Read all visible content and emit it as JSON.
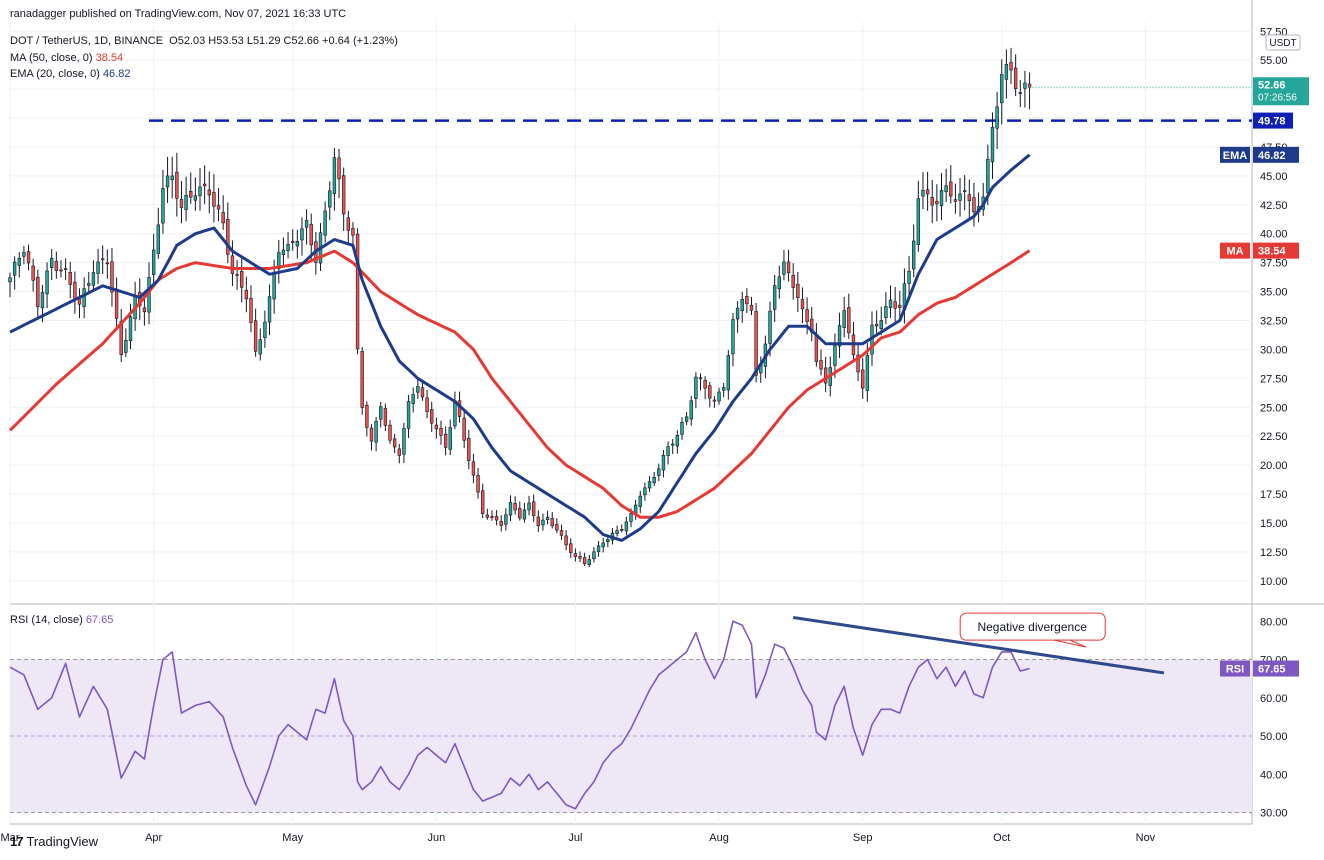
{
  "publish_line": "ranadagger published on TradingView.com, Nov 07, 2021 16:33 UTC",
  "legend": {
    "symbol": "DOT / TetherUS, 1D, BINANCE",
    "ohlc": "O52.03  H53.53  L51.29  C52.66  +0.64 (+1.23%)",
    "ma_label": "MA (50, close, 0)",
    "ma_value": "38.54",
    "ema_label": "EMA (20, close, 0)",
    "ema_value": "46.82",
    "rsi_label": "RSI (14, close)",
    "rsi_value": "67.65"
  },
  "footer": {
    "brand": "TradingView",
    "logo": "17"
  },
  "colors": {
    "up": "#26a69a",
    "down": "#ef5350",
    "candle": "#131722",
    "ema": "#1e3a8a",
    "ma": "#e53935",
    "rsi": "#7e57c2",
    "rsi_band": "#ede7f6",
    "resistance": "#0d1fb4",
    "divergence": "#2f4a8a",
    "annotation_border": "#e53935"
  },
  "chart_data": {
    "type": "candlestick",
    "price_axis": {
      "unit": "USDT",
      "ticks": [
        10.0,
        12.5,
        15.0,
        17.5,
        20.0,
        22.5,
        25.0,
        27.5,
        30.0,
        32.5,
        35.0,
        37.5,
        40.0,
        42.5,
        45.0,
        47.5,
        50.0,
        52.5,
        55.0,
        57.5
      ],
      "labels": [
        "10.00",
        "12.50",
        "15.00",
        "17.50",
        "20.00",
        "22.50",
        "25.00",
        "27.50",
        "30.00",
        "32.50",
        "35.00",
        "37.50",
        "40.00",
        "42.50",
        "45.00",
        "47.50",
        "",
        "",
        "55.00",
        "57.50"
      ],
      "range": [
        8.0,
        58.3
      ]
    },
    "rsi_axis": {
      "ticks": [
        30,
        40,
        50,
        60,
        70,
        80
      ],
      "labels": [
        "30.00",
        "40.00",
        "50.00",
        "60.00",
        "70.00",
        "80.00"
      ],
      "range": [
        27,
        84
      ],
      "band": [
        30,
        70
      ]
    },
    "time_axis": {
      "labels": [
        "Mar",
        "Apr",
        "May",
        "Jun",
        "Jul",
        "Aug",
        "Sep",
        "Oct",
        "Nov"
      ],
      "label_days": [
        0,
        31,
        61,
        92,
        122,
        153,
        184,
        214,
        245
      ],
      "last_day": 251,
      "right_pad_days": 17
    },
    "last_price": {
      "value": 52.66,
      "label": "52.66",
      "countdown": "07:26:56"
    },
    "resistance": {
      "value": 49.78,
      "label": "49.78",
      "start_day": 30
    },
    "ema_tag": {
      "label": "EMA",
      "value": "46.82"
    },
    "ma_tag": {
      "label": "MA",
      "value": "38.54"
    },
    "rsi_tag": {
      "label": "RSI",
      "value": "67.65"
    },
    "annotation": {
      "text": "Negative divergence",
      "day": 221,
      "rsi": 79
    },
    "divergence_line": {
      "start_day": 169,
      "start_rsi": 81,
      "end_day": 249,
      "end_rsi": 66.5
    },
    "close_anchors": [
      [
        0,
        36.2
      ],
      [
        3,
        38.5
      ],
      [
        6,
        34.0
      ],
      [
        9,
        38.0
      ],
      [
        12,
        36.5
      ],
      [
        15,
        33.5
      ],
      [
        18,
        37.0
      ],
      [
        21,
        38.2
      ],
      [
        24,
        29.5
      ],
      [
        27,
        34.0
      ],
      [
        29,
        33.5
      ],
      [
        31,
        38.5
      ],
      [
        33,
        44.5
      ],
      [
        35,
        45.0
      ],
      [
        37,
        42.0
      ],
      [
        40,
        43.5
      ],
      [
        43,
        44.0
      ],
      [
        46,
        41.0
      ],
      [
        48,
        36.5
      ],
      [
        51,
        34.5
      ],
      [
        53,
        29.5
      ],
      [
        56,
        34.5
      ],
      [
        58,
        39.0
      ],
      [
        60,
        38.5
      ],
      [
        62,
        39.5
      ],
      [
        64,
        40.5
      ],
      [
        66,
        38.0
      ],
      [
        68,
        42.0
      ],
      [
        70,
        47.0
      ],
      [
        72,
        41.5
      ],
      [
        74,
        39.5
      ],
      [
        75,
        29.5
      ],
      [
        76,
        25.0
      ],
      [
        78,
        22.0
      ],
      [
        80,
        25.5
      ],
      [
        82,
        22.0
      ],
      [
        84,
        21.0
      ],
      [
        86,
        25.0
      ],
      [
        88,
        27.0
      ],
      [
        90,
        24.5
      ],
      [
        92,
        23.5
      ],
      [
        94,
        21.5
      ],
      [
        96,
        25.5
      ],
      [
        98,
        22.0
      ],
      [
        100,
        19.0
      ],
      [
        102,
        16.0
      ],
      [
        104,
        15.5
      ],
      [
        106,
        15.0
      ],
      [
        108,
        16.5
      ],
      [
        110,
        15.5
      ],
      [
        112,
        16.5
      ],
      [
        114,
        15.0
      ],
      [
        116,
        15.5
      ],
      [
        118,
        14.5
      ],
      [
        120,
        13.0
      ],
      [
        122,
        12.0
      ],
      [
        124,
        11.5
      ],
      [
        126,
        12.5
      ],
      [
        128,
        13.5
      ],
      [
        130,
        14.0
      ],
      [
        132,
        14.5
      ],
      [
        134,
        15.5
      ],
      [
        136,
        17.5
      ],
      [
        138,
        18.5
      ],
      [
        140,
        20.0
      ],
      [
        142,
        21.5
      ],
      [
        144,
        22.5
      ],
      [
        146,
        24.0
      ],
      [
        148,
        27.5
      ],
      [
        150,
        27.0
      ],
      [
        152,
        25.5
      ],
      [
        154,
        27.0
      ],
      [
        156,
        32.0
      ],
      [
        158,
        34.5
      ],
      [
        160,
        33.0
      ],
      [
        161,
        28.0
      ],
      [
        163,
        30.5
      ],
      [
        165,
        36.0
      ],
      [
        167,
        37.0
      ],
      [
        169,
        35.5
      ],
      [
        171,
        33.0
      ],
      [
        173,
        32.0
      ],
      [
        174,
        29.0
      ],
      [
        176,
        27.5
      ],
      [
        178,
        30.0
      ],
      [
        180,
        33.5
      ],
      [
        182,
        29.0
      ],
      [
        184,
        27.0
      ],
      [
        186,
        32.0
      ],
      [
        188,
        33.0
      ],
      [
        190,
        34.0
      ],
      [
        192,
        33.5
      ],
      [
        194,
        36.5
      ],
      [
        196,
        43.0
      ],
      [
        198,
        44.0
      ],
      [
        200,
        42.5
      ],
      [
        202,
        44.5
      ],
      [
        204,
        42.0
      ],
      [
        206,
        44.0
      ],
      [
        208,
        41.5
      ],
      [
        210,
        44.0
      ],
      [
        212,
        49.0
      ],
      [
        214,
        54.0
      ],
      [
        216,
        53.5
      ],
      [
        218,
        52.0
      ],
      [
        220,
        52.66
      ]
    ],
    "ema_anchors": [
      [
        0,
        31.5
      ],
      [
        10,
        33.5
      ],
      [
        20,
        35.5
      ],
      [
        28,
        34.5
      ],
      [
        32,
        36.0
      ],
      [
        36,
        39.0
      ],
      [
        40,
        40.0
      ],
      [
        44,
        40.5
      ],
      [
        48,
        38.5
      ],
      [
        52,
        37.5
      ],
      [
        56,
        36.5
      ],
      [
        62,
        37.0
      ],
      [
        66,
        38.5
      ],
      [
        70,
        39.5
      ],
      [
        74,
        39.0
      ],
      [
        76,
        36.0
      ],
      [
        80,
        32.0
      ],
      [
        84,
        29.0
      ],
      [
        88,
        27.5
      ],
      [
        92,
        26.5
      ],
      [
        96,
        25.5
      ],
      [
        100,
        24.0
      ],
      [
        104,
        21.5
      ],
      [
        108,
        19.5
      ],
      [
        112,
        18.5
      ],
      [
        116,
        17.5
      ],
      [
        120,
        16.5
      ],
      [
        124,
        15.5
      ],
      [
        128,
        14.0
      ],
      [
        132,
        13.5
      ],
      [
        136,
        14.5
      ],
      [
        140,
        16.0
      ],
      [
        144,
        18.5
      ],
      [
        148,
        21.0
      ],
      [
        152,
        23.0
      ],
      [
        156,
        25.5
      ],
      [
        160,
        27.5
      ],
      [
        164,
        30.0
      ],
      [
        168,
        32.0
      ],
      [
        172,
        32.0
      ],
      [
        176,
        30.5
      ],
      [
        180,
        30.5
      ],
      [
        184,
        30.5
      ],
      [
        188,
        31.5
      ],
      [
        192,
        32.5
      ],
      [
        196,
        36.5
      ],
      [
        200,
        39.5
      ],
      [
        204,
        40.5
      ],
      [
        208,
        41.5
      ],
      [
        210,
        42.5
      ],
      [
        212,
        44.0
      ],
      [
        216,
        45.5
      ],
      [
        220,
        46.82
      ]
    ],
    "ma_anchors": [
      [
        0,
        23.0
      ],
      [
        10,
        27.0
      ],
      [
        20,
        30.5
      ],
      [
        28,
        34.0
      ],
      [
        32,
        36.0
      ],
      [
        36,
        37.0
      ],
      [
        40,
        37.5
      ],
      [
        48,
        37.0
      ],
      [
        56,
        37.0
      ],
      [
        64,
        37.5
      ],
      [
        70,
        38.5
      ],
      [
        74,
        37.5
      ],
      [
        80,
        35.0
      ],
      [
        88,
        33.0
      ],
      [
        96,
        31.5
      ],
      [
        100,
        30.0
      ],
      [
        104,
        27.5
      ],
      [
        108,
        25.5
      ],
      [
        112,
        23.5
      ],
      [
        116,
        21.5
      ],
      [
        120,
        20.0
      ],
      [
        124,
        19.0
      ],
      [
        128,
        18.0
      ],
      [
        132,
        16.5
      ],
      [
        136,
        15.5
      ],
      [
        140,
        15.5
      ],
      [
        144,
        16.0
      ],
      [
        148,
        17.0
      ],
      [
        152,
        18.0
      ],
      [
        156,
        19.5
      ],
      [
        160,
        21.0
      ],
      [
        164,
        23.0
      ],
      [
        168,
        25.0
      ],
      [
        172,
        26.5
      ],
      [
        176,
        27.5
      ],
      [
        180,
        28.5
      ],
      [
        184,
        29.5
      ],
      [
        188,
        31.0
      ],
      [
        192,
        31.5
      ],
      [
        196,
        33.0
      ],
      [
        200,
        34.0
      ],
      [
        204,
        34.5
      ],
      [
        208,
        35.5
      ],
      [
        212,
        36.5
      ],
      [
        216,
        37.5
      ],
      [
        220,
        38.54
      ]
    ],
    "rsi_anchors": [
      [
        0,
        68
      ],
      [
        3,
        66
      ],
      [
        6,
        57
      ],
      [
        9,
        60
      ],
      [
        12,
        69
      ],
      [
        15,
        55
      ],
      [
        18,
        63
      ],
      [
        21,
        57
      ],
      [
        24,
        39
      ],
      [
        27,
        46
      ],
      [
        29,
        44
      ],
      [
        31,
        58
      ],
      [
        33,
        70
      ],
      [
        35,
        72
      ],
      [
        37,
        56
      ],
      [
        40,
        58
      ],
      [
        43,
        59
      ],
      [
        46,
        55
      ],
      [
        48,
        47
      ],
      [
        51,
        37
      ],
      [
        53,
        32
      ],
      [
        56,
        42
      ],
      [
        58,
        50
      ],
      [
        60,
        53
      ],
      [
        62,
        51
      ],
      [
        64,
        49
      ],
      [
        66,
        57
      ],
      [
        68,
        56
      ],
      [
        70,
        65
      ],
      [
        72,
        54
      ],
      [
        74,
        50
      ],
      [
        75,
        38
      ],
      [
        76,
        36
      ],
      [
        78,
        38
      ],
      [
        80,
        42
      ],
      [
        82,
        38
      ],
      [
        84,
        36
      ],
      [
        86,
        40
      ],
      [
        88,
        45
      ],
      [
        90,
        47
      ],
      [
        92,
        45
      ],
      [
        94,
        43
      ],
      [
        96,
        48
      ],
      [
        98,
        42
      ],
      [
        100,
        36
      ],
      [
        102,
        33
      ],
      [
        104,
        34
      ],
      [
        106,
        35
      ],
      [
        108,
        39
      ],
      [
        110,
        37
      ],
      [
        112,
        40
      ],
      [
        114,
        36
      ],
      [
        116,
        38
      ],
      [
        118,
        35
      ],
      [
        120,
        32
      ],
      [
        122,
        31
      ],
      [
        124,
        35
      ],
      [
        126,
        38
      ],
      [
        128,
        43
      ],
      [
        130,
        46
      ],
      [
        132,
        48
      ],
      [
        134,
        52
      ],
      [
        136,
        57
      ],
      [
        138,
        62
      ],
      [
        140,
        66
      ],
      [
        142,
        68
      ],
      [
        144,
        70
      ],
      [
        146,
        72
      ],
      [
        148,
        77
      ],
      [
        150,
        70
      ],
      [
        152,
        65
      ],
      [
        154,
        70
      ],
      [
        156,
        80
      ],
      [
        158,
        79
      ],
      [
        160,
        74
      ],
      [
        161,
        60
      ],
      [
        163,
        66
      ],
      [
        165,
        74
      ],
      [
        167,
        73
      ],
      [
        169,
        68
      ],
      [
        171,
        62
      ],
      [
        173,
        58
      ],
      [
        174,
        51
      ],
      [
        176,
        49
      ],
      [
        178,
        58
      ],
      [
        180,
        63
      ],
      [
        182,
        52
      ],
      [
        184,
        45
      ],
      [
        186,
        53
      ],
      [
        188,
        57
      ],
      [
        190,
        57
      ],
      [
        192,
        56
      ],
      [
        194,
        63
      ],
      [
        196,
        68
      ],
      [
        198,
        70
      ],
      [
        200,
        65
      ],
      [
        202,
        68
      ],
      [
        204,
        63
      ],
      [
        206,
        67
      ],
      [
        208,
        61
      ],
      [
        210,
        60
      ],
      [
        212,
        68
      ],
      [
        214,
        72
      ],
      [
        216,
        72
      ],
      [
        218,
        67
      ],
      [
        220,
        67.65
      ]
    ]
  }
}
